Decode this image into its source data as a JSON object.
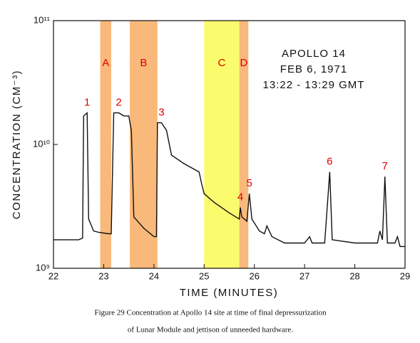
{
  "chart_data": {
    "type": "line",
    "xlabel": "TIME (MINUTES)",
    "ylabel": "CONCENTRATION (CM⁻³)",
    "annotation": [
      "APOLLO 14",
      "FEB 6, 1971",
      "13:22 - 13:29 GMT"
    ],
    "caption": [
      "Figure 29   Concentration at Apollo 14 site at time of final depressurization",
      "of Lunar Module and jettison of unneeded hardware."
    ],
    "log_y": true,
    "color": "#111111",
    "xlim": [
      22,
      29
    ],
    "xticks": [
      22,
      23,
      24,
      25,
      26,
      27,
      28,
      29
    ],
    "ylim": [
      1000000000.0,
      100000000000.0
    ],
    "yticks": [
      {
        "value": 1000000000.0,
        "label": "10⁹"
      },
      {
        "value": 10000000000.0,
        "label": "10¹⁰"
      },
      {
        "value": 100000000000.0,
        "label": "10¹¹"
      }
    ],
    "x": [
      22.0,
      22.5,
      22.58,
      22.6,
      22.67,
      22.7,
      22.8,
      22.9,
      23.1,
      23.15,
      23.2,
      23.3,
      23.4,
      23.5,
      23.55,
      23.6,
      23.8,
      24.0,
      24.05,
      24.07,
      24.15,
      24.25,
      24.35,
      24.6,
      24.9,
      24.95,
      25.0,
      25.2,
      25.5,
      25.7,
      25.72,
      25.75,
      25.85,
      25.9,
      25.95,
      26.1,
      26.2,
      26.25,
      26.35,
      26.6,
      27.0,
      27.1,
      27.15,
      27.4,
      27.5,
      27.55,
      28.0,
      28.45,
      28.5,
      28.55,
      28.6,
      28.65,
      28.8,
      28.85,
      28.9,
      29.0
    ],
    "values": [
      1700000000.0,
      1700000000.0,
      1750000000.0,
      17000000000.0,
      18000000000.0,
      2500000000.0,
      2000000000.0,
      1950000000.0,
      1900000000.0,
      1900000000.0,
      18000000000.0,
      18000000000.0,
      17000000000.0,
      17000000000.0,
      13000000000.0,
      2600000000.0,
      2100000000.0,
      1800000000.0,
      1800000000.0,
      15000000000.0,
      15000000000.0,
      13000000000.0,
      8200000000.0,
      7000000000.0,
      6000000000.0,
      4800000000.0,
      4000000000.0,
      3400000000.0,
      2800000000.0,
      2500000000.0,
      3100000000.0,
      2600000000.0,
      2400000000.0,
      4000000000.0,
      2500000000.0,
      2000000000.0,
      1900000000.0,
      2200000000.0,
      1800000000.0,
      1600000000.0,
      1600000000.0,
      1800000000.0,
      1600000000.0,
      1600000000.0,
      6000000000.0,
      1700000000.0,
      1600000000.0,
      1600000000.0,
      2000000000.0,
      1700000000.0,
      5500000000.0,
      1600000000.0,
      1600000000.0,
      1800000000.0,
      1500000000.0,
      1500000000.0
    ],
    "bands": [
      {
        "label": "A",
        "x": [
          22.93,
          23.15
        ],
        "color": "#f9b97a"
      },
      {
        "label": "B",
        "x": [
          23.52,
          24.07
        ],
        "color": "#f9b97a"
      },
      {
        "label": "C",
        "x": [
          25.0,
          25.7
        ],
        "color": "#fbfb6e"
      },
      {
        "label": "D",
        "x": [
          25.7,
          25.88
        ],
        "color": "#f9b97a"
      }
    ],
    "peaks": [
      {
        "label": "1",
        "x": 22.67
      },
      {
        "label": "2",
        "x": 23.3
      },
      {
        "label": "3",
        "x": 24.15
      },
      {
        "label": "4",
        "x": 25.72
      },
      {
        "label": "5",
        "x": 25.9
      },
      {
        "label": "6",
        "x": 27.5
      },
      {
        "label": "7",
        "x": 28.6
      }
    ]
  }
}
